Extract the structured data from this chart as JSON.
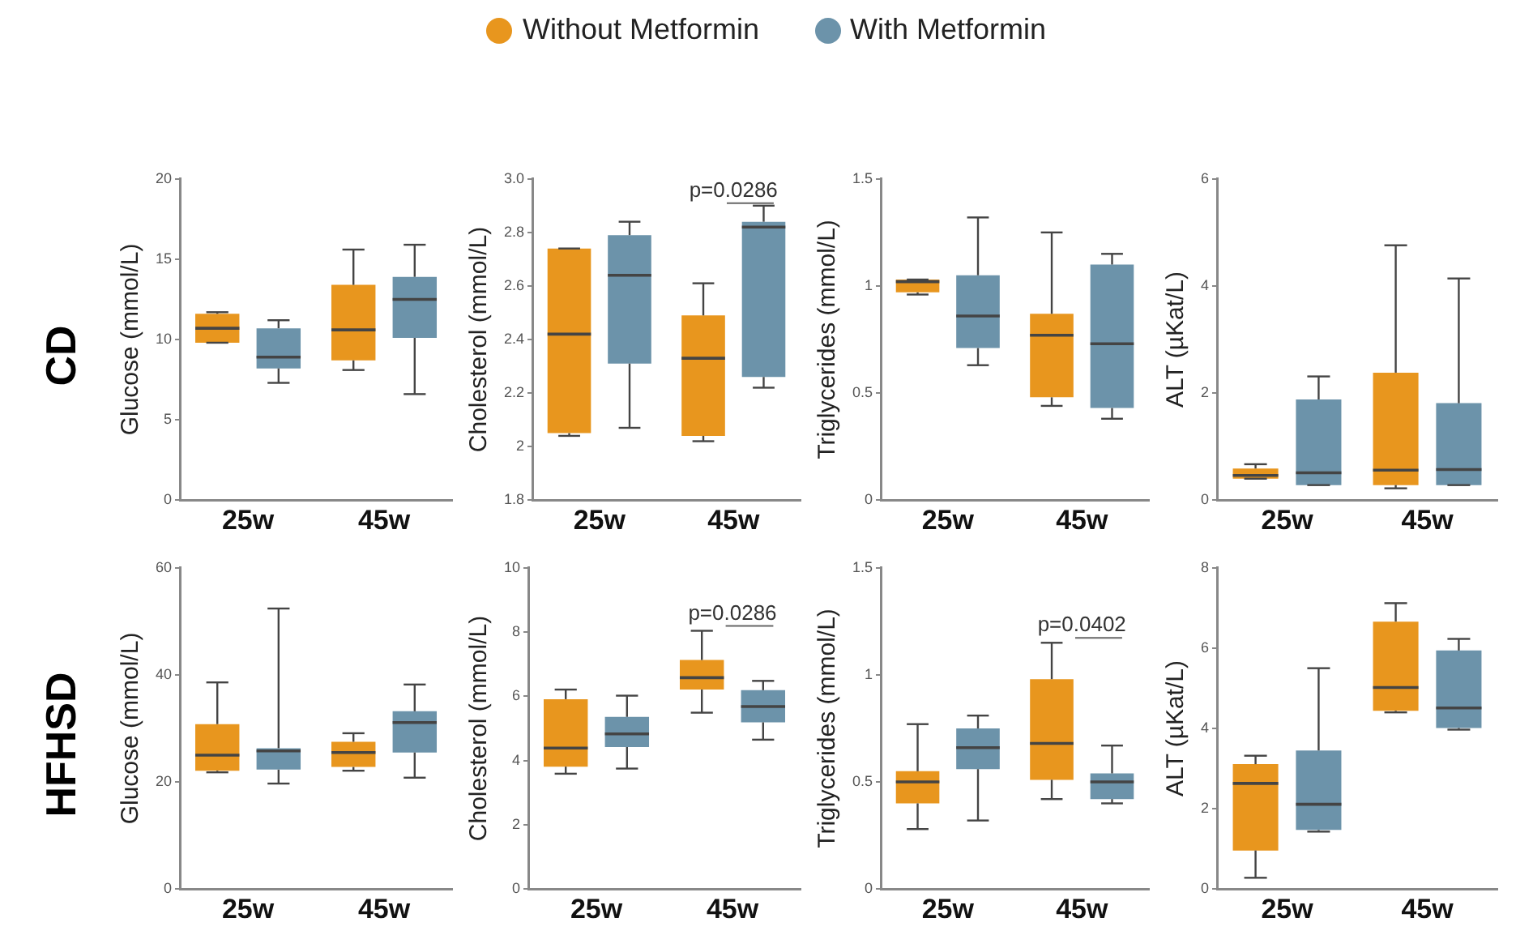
{
  "chart_data": [
    {
      "type": "box",
      "title": "CD",
      "legend": "top",
      "ylabel": "Glucose (mmol/L)",
      "categories": [
        "25w",
        "45w"
      ],
      "ylim": [
        0,
        20
      ],
      "yticks": [
        0,
        5,
        10,
        15,
        20
      ],
      "series": [
        {
          "name": "Without Metformin",
          "color": "#e8961e",
          "boxes": [
            {
              "low": 9.8,
              "q1": 9.8,
              "median": 10.7,
              "q3": 11.6,
              "high": 11.7
            },
            {
              "low": 8.1,
              "q1": 8.7,
              "median": 10.6,
              "q3": 13.4,
              "high": 15.6
            }
          ]
        },
        {
          "name": "With Metformin",
          "color": "#6c93aa",
          "boxes": [
            {
              "low": 7.3,
              "q1": 8.2,
              "median": 8.9,
              "q3": 10.7,
              "high": 11.2
            },
            {
              "low": 6.6,
              "q1": 10.1,
              "median": 12.5,
              "q3": 13.9,
              "high": 15.9
            }
          ]
        }
      ]
    },
    {
      "type": "box",
      "annotations": [
        "p=0.0286"
      ],
      "ylabel": "Cholesterol (mmol/L)",
      "categories": [
        "25w",
        "45w"
      ],
      "ylim": [
        1.8,
        3
      ],
      "yticks": [
        1.8,
        2,
        2.2,
        2.4,
        2.6,
        2.8,
        {
          "value": 3,
          "label": "3.0"
        }
      ],
      "series": [
        {
          "color": "#e8961e",
          "boxes": [
            {
              "low": 2.04,
              "q1": 2.05,
              "median": 2.42,
              "q3": 2.74,
              "high": 2.74
            },
            {
              "low": 2.02,
              "q1": 2.04,
              "median": 2.33,
              "q3": 2.49,
              "high": 2.61
            }
          ]
        },
        {
          "color": "#6c93aa",
          "boxes": [
            {
              "low": 2.07,
              "q1": 2.31,
              "median": 2.64,
              "q3": 2.79,
              "high": 2.84
            },
            {
              "low": 2.22,
              "q1": 2.26,
              "median": 2.82,
              "q3": 2.84,
              "high": 2.9
            }
          ]
        }
      ]
    },
    {
      "type": "box",
      "ylabel": "Triglycerides (mmol/L)",
      "categories": [
        "25w",
        "45w"
      ],
      "ylim": [
        0,
        1.5
      ],
      "yticks": [
        0,
        0.5,
        1,
        1.5
      ],
      "series": [
        {
          "color": "#e8961e",
          "boxes": [
            {
              "low": 0.96,
              "q1": 0.97,
              "median": 1.02,
              "q3": 1.03,
              "high": 1.03
            },
            {
              "low": 0.44,
              "q1": 0.48,
              "median": 0.77,
              "q3": 0.87,
              "high": 1.25
            }
          ]
        },
        {
          "color": "#6c93aa",
          "boxes": [
            {
              "low": 0.63,
              "q1": 0.71,
              "median": 0.86,
              "q3": 1.05,
              "high": 1.32
            },
            {
              "low": 0.38,
              "q1": 0.43,
              "median": 0.73,
              "q3": 1.1,
              "high": 1.15
            }
          ]
        }
      ]
    },
    {
      "type": "box",
      "ylabel": "ALT (µKat/L)",
      "categories": [
        "25w",
        "45w"
      ],
      "ylim": [
        0,
        6
      ],
      "yticks": [
        0,
        2,
        4,
        6
      ],
      "series": [
        {
          "color": "#e8961e",
          "boxes": [
            {
              "low": 0.4,
              "q1": 0.4,
              "median": 0.46,
              "q3": 0.59,
              "high": 0.67
            },
            {
              "low": 0.22,
              "q1": 0.28,
              "median": 0.56,
              "q3": 2.38,
              "high": 4.76
            }
          ]
        },
        {
          "color": "#6c93aa",
          "boxes": [
            {
              "low": 0.28,
              "q1": 0.28,
              "median": 0.51,
              "q3": 1.88,
              "high": 2.31
            },
            {
              "low": 0.28,
              "q1": 0.28,
              "median": 0.57,
              "q3": 1.81,
              "high": 4.14
            }
          ]
        }
      ]
    },
    {
      "type": "box",
      "title": "HFHSD",
      "ylabel": "Glucose (mmol/L)",
      "categories": [
        "25w",
        "45w"
      ],
      "ylim": [
        0,
        60
      ],
      "yticks": [
        0,
        20,
        40,
        60
      ],
      "series": [
        {
          "color": "#e8961e",
          "boxes": [
            {
              "low": 21.8,
              "q1": 22.1,
              "median": 25,
              "q3": 30.8,
              "high": 38.6
            },
            {
              "low": 22.1,
              "q1": 22.8,
              "median": 25.5,
              "q3": 27.5,
              "high": 29.1
            }
          ]
        },
        {
          "color": "#6c93aa",
          "boxes": [
            {
              "low": 19.7,
              "q1": 22.3,
              "median": 25.8,
              "q3": 26.3,
              "high": 52.4
            },
            {
              "low": 20.8,
              "q1": 25.5,
              "median": 31.1,
              "q3": 33.2,
              "high": 38.2
            }
          ]
        }
      ]
    },
    {
      "type": "box",
      "annotations": [
        "p=0.0286"
      ],
      "ylabel": "Cholesterol (mmol/L)",
      "categories": [
        "25w",
        "45w"
      ],
      "ylim": [
        0,
        10
      ],
      "yticks": [
        0,
        2,
        4,
        6,
        8,
        10
      ],
      "series": [
        {
          "color": "#e8961e",
          "boxes": [
            {
              "low": 3.59,
              "q1": 3.81,
              "median": 4.39,
              "q3": 5.91,
              "high": 6.21
            },
            {
              "low": 5.49,
              "q1": 6.21,
              "median": 6.58,
              "q3": 7.13,
              "high": 8.04
            }
          ]
        },
        {
          "color": "#6c93aa",
          "boxes": [
            {
              "low": 3.75,
              "q1": 4.42,
              "median": 4.83,
              "q3": 5.36,
              "high": 6.02
            },
            {
              "low": 4.65,
              "q1": 5.19,
              "median": 5.68,
              "q3": 6.19,
              "high": 6.48
            }
          ]
        }
      ]
    },
    {
      "type": "box",
      "annotations": [
        "p=0.0402"
      ],
      "ylabel": "Triglycerides (mmol/L)",
      "categories": [
        "25w",
        "45w"
      ],
      "ylim": [
        0,
        1.5
      ],
      "yticks": [
        0,
        0.5,
        1,
        1.5
      ],
      "series": [
        {
          "color": "#e8961e",
          "boxes": [
            {
              "low": 0.28,
              "q1": 0.4,
              "median": 0.5,
              "q3": 0.55,
              "high": 0.77
            },
            {
              "low": 0.42,
              "q1": 0.51,
              "median": 0.68,
              "q3": 0.98,
              "high": 1.15
            }
          ]
        },
        {
          "color": "#6c93aa",
          "boxes": [
            {
              "low": 0.32,
              "q1": 0.56,
              "median": 0.66,
              "q3": 0.75,
              "high": 0.81
            },
            {
              "low": 0.4,
              "q1": 0.42,
              "median": 0.5,
              "q3": 0.54,
              "high": 0.67
            }
          ]
        }
      ]
    },
    {
      "type": "box",
      "ylabel": "ALT (µKat/L)",
      "categories": [
        "25w",
        "45w"
      ],
      "ylim": [
        0,
        8
      ],
      "yticks": [
        0,
        2,
        4,
        6,
        8
      ],
      "series": [
        {
          "color": "#e8961e",
          "boxes": [
            {
              "low": 0.28,
              "q1": 0.96,
              "median": 2.63,
              "q3": 3.11,
              "high": 3.32
            },
            {
              "low": 4.4,
              "q1": 4.44,
              "median": 5.02,
              "q3": 6.66,
              "high": 7.12
            }
          ]
        },
        {
          "color": "#6c93aa",
          "boxes": [
            {
              "low": 1.43,
              "q1": 1.47,
              "median": 2.11,
              "q3": 3.45,
              "high": 5.5
            },
            {
              "low": 3.97,
              "q1": 4.01,
              "median": 4.51,
              "q3": 5.94,
              "high": 6.23
            }
          ]
        }
      ]
    }
  ]
}
